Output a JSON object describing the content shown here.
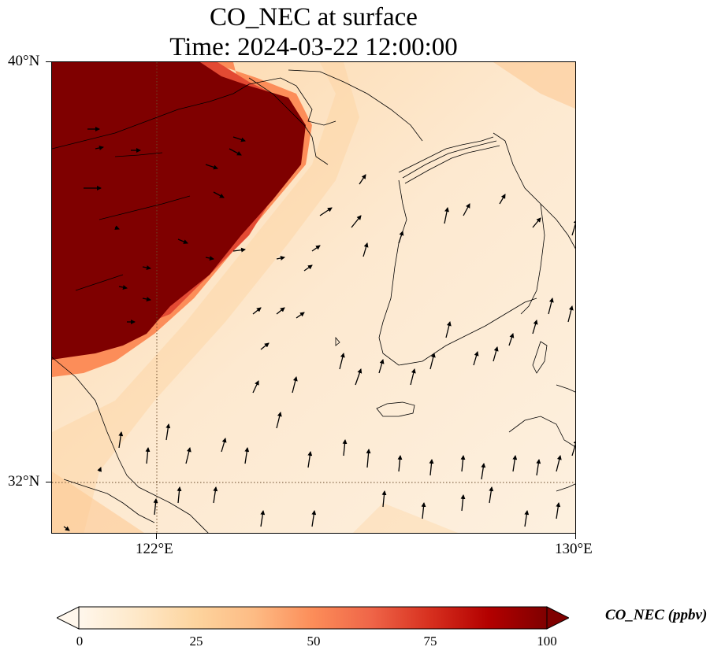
{
  "title": {
    "line1": "CO_NEC at surface",
    "line2": "Time: 2024-03-22 12:00:00"
  },
  "axes": {
    "y_ticks": [
      "40°N",
      "32°N"
    ],
    "x_ticks": [
      "122°E",
      "130°E"
    ],
    "lon_range": [
      120,
      130
    ],
    "lat_range": [
      31,
      40
    ],
    "gridline_style": "dotted"
  },
  "colorbar": {
    "label": "CO_NEC (ppbv)",
    "ticks": [
      "0",
      "25",
      "50",
      "75",
      "100"
    ],
    "min": 0,
    "max": 100,
    "colormap": "OrRd",
    "extend": "both",
    "colors": [
      "#fff7ec",
      "#fee8c8",
      "#fdd49e",
      "#fdbb84",
      "#fc8d59",
      "#ef6548",
      "#d7301f",
      "#b30000",
      "#7f0000"
    ]
  },
  "map_colors": {
    "saturated": "#7f0000",
    "background": "#fdebd6",
    "coastline": "#000000"
  },
  "wind_vectors": {
    "description_color": "#000000",
    "dominant_direction": "north"
  }
}
